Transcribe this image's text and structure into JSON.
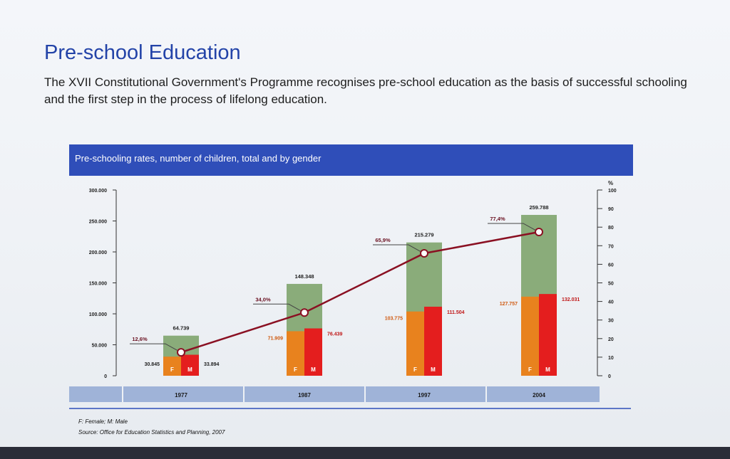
{
  "slide": {
    "title": "Pre-school Education",
    "subtitle": "The XVII Constitutional Government's Programme recognises pre-school education as the basis of successful schooling and the first step in the process of lifelong education."
  },
  "chart_data": {
    "type": "bar",
    "title": "Pre-schooling rates, number of children, total and by gender",
    "categories": [
      "1977",
      "1987",
      "1997",
      "2004"
    ],
    "series": [
      {
        "name": "F",
        "values": [
          30845,
          71909,
          103775,
          127757
        ],
        "color": "#e8821e"
      },
      {
        "name": "M",
        "values": [
          33894,
          76439,
          111504,
          132031
        ],
        "color": "#e41e1e"
      }
    ],
    "totals": [
      64739,
      148348,
      215279,
      259788
    ],
    "total_color": "#8aac7a",
    "rate": {
      "values": [
        12.6,
        34.0,
        65.9,
        77.4
      ],
      "color": "#8a1022",
      "unit": "%"
    },
    "total_labels": [
      "64.739",
      "148.348",
      "215.279",
      "259.788"
    ],
    "f_labels": [
      "30.845",
      "71.909",
      "103.775",
      "127.757"
    ],
    "m_labels": [
      "33.894",
      "76.439",
      "111.504",
      "132.031"
    ],
    "rate_labels": [
      "12,6%",
      "34,0%",
      "65,9%",
      "77,4%"
    ],
    "left_axis": {
      "ylim": [
        0,
        300000
      ],
      "ticks": [
        0,
        50000,
        100000,
        150000,
        200000,
        250000,
        300000
      ],
      "tick_labels": [
        "0",
        "50.000",
        "100.000",
        "150.000",
        "200.000",
        "250.000",
        "300.000"
      ]
    },
    "right_axis": {
      "label": "%",
      "ylim": [
        0,
        100
      ],
      "ticks": [
        0,
        10,
        20,
        30,
        40,
        50,
        60,
        70,
        80,
        90,
        100
      ],
      "tick_labels": [
        "0",
        "10",
        "20",
        "30",
        "40",
        "50",
        "60",
        "70",
        "80",
        "90",
        "100"
      ]
    },
    "f_tag": "F",
    "m_tag": "M"
  },
  "footnotes": {
    "legend_note": "F: Female; M: Male",
    "source": "Source: Office for Education Statistics and Planning, 2007"
  }
}
